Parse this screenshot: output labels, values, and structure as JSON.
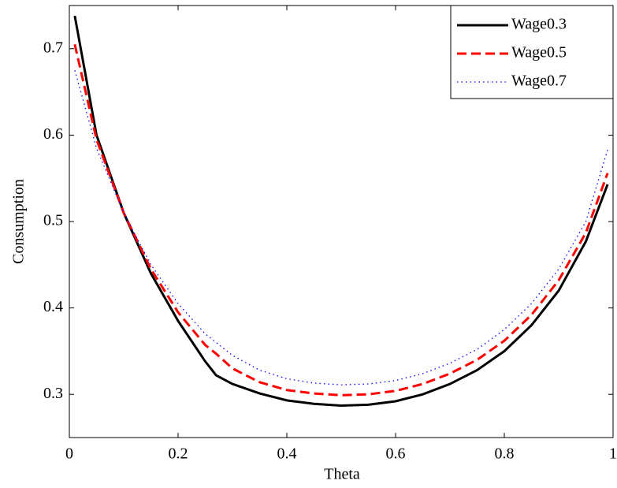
{
  "chart_data": {
    "type": "line",
    "x": [
      0.01,
      0.05,
      0.1,
      0.15,
      0.2,
      0.25,
      0.27,
      0.3,
      0.35,
      0.4,
      0.45,
      0.5,
      0.55,
      0.6,
      0.65,
      0.7,
      0.75,
      0.8,
      0.85,
      0.9,
      0.95,
      0.99
    ],
    "series": [
      {
        "name": "Wage0.3",
        "color": "#000000",
        "style": "solid",
        "values": [
          0.738,
          0.6,
          0.51,
          0.44,
          0.385,
          0.338,
          0.322,
          0.312,
          0.301,
          0.293,
          0.289,
          0.287,
          0.288,
          0.292,
          0.3,
          0.312,
          0.328,
          0.35,
          0.38,
          0.42,
          0.477,
          0.543
        ]
      },
      {
        "name": "Wage0.5",
        "color": "#ff0000",
        "style": "dashed",
        "values": [
          0.705,
          0.595,
          0.51,
          0.445,
          0.395,
          0.357,
          0.347,
          0.33,
          0.314,
          0.305,
          0.301,
          0.299,
          0.3,
          0.304,
          0.312,
          0.324,
          0.34,
          0.362,
          0.392,
          0.432,
          0.487,
          0.556
        ]
      },
      {
        "name": "Wage0.7",
        "color": "#0000ff",
        "style": "dotted",
        "values": [
          0.675,
          0.585,
          0.51,
          0.45,
          0.405,
          0.37,
          0.36,
          0.345,
          0.328,
          0.318,
          0.313,
          0.311,
          0.312,
          0.316,
          0.324,
          0.336,
          0.352,
          0.375,
          0.405,
          0.445,
          0.5,
          0.583
        ]
      }
    ],
    "x_label": "Theta",
    "y_label": "Consumption",
    "xlim": [
      0,
      1
    ],
    "xticks": [
      0,
      0.2,
      0.4,
      0.6,
      0.8,
      1
    ],
    "ylim": [
      0.25,
      0.75
    ],
    "yticks": [
      0.3,
      0.4,
      0.5,
      0.6,
      0.7
    ],
    "grid": false,
    "legend": "top-right"
  }
}
